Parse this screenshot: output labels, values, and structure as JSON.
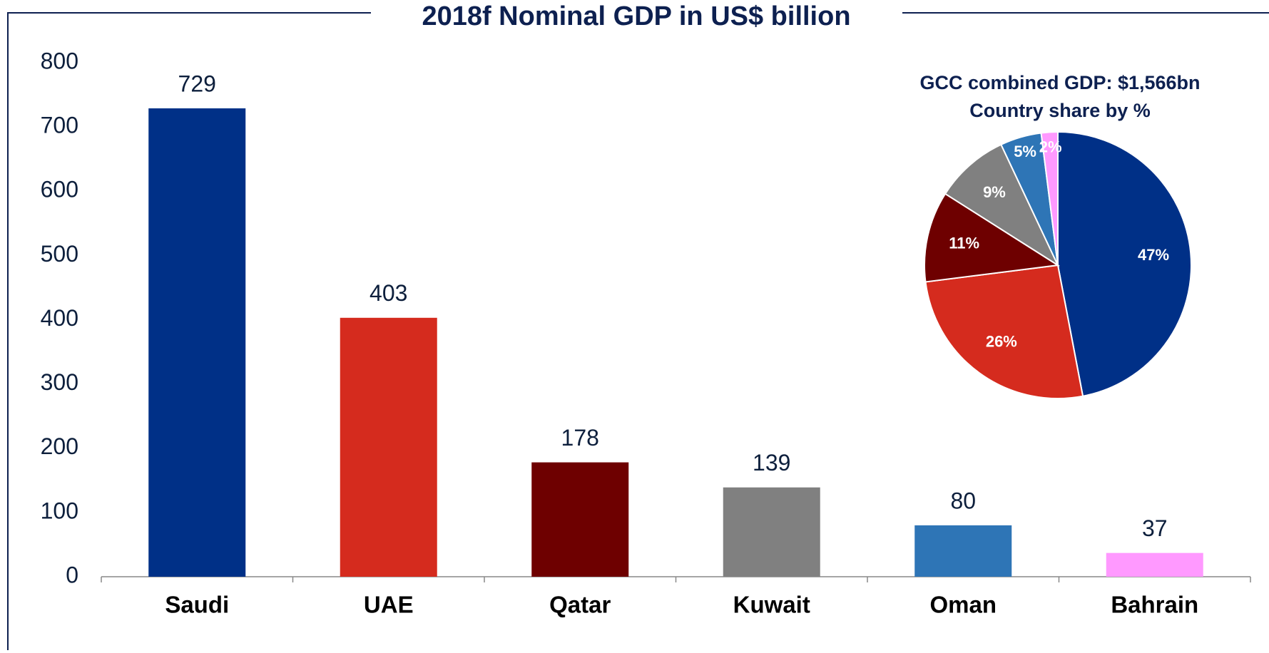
{
  "chart_data": [
    {
      "type": "bar",
      "title": "2018f Nominal GDP in US$ billion",
      "categories": [
        "Saudi",
        "UAE",
        "Qatar",
        "Kuwait",
        "Oman",
        "Bahrain"
      ],
      "values": [
        729,
        403,
        178,
        139,
        80,
        37
      ],
      "colors": [
        "#003087",
        "#d52b1e",
        "#6e0000",
        "#808080",
        "#2e75b6",
        "#ff99ff"
      ],
      "ylim": [
        0,
        800
      ],
      "yticks": [
        0,
        100,
        200,
        300,
        400,
        500,
        600,
        700,
        800
      ],
      "grid": false
    },
    {
      "type": "pie",
      "title": [
        "GCC combined GDP: $1,566bn",
        "Country share by %"
      ],
      "values": [
        47,
        26,
        11,
        9,
        5,
        2
      ],
      "value_labels": [
        "47%",
        "26%",
        "11%",
        "9%",
        "5%",
        "2%"
      ],
      "colors": [
        "#003087",
        "#d52b1e",
        "#6e0000",
        "#808080",
        "#2e75b6",
        "#ff99ff"
      ]
    }
  ]
}
